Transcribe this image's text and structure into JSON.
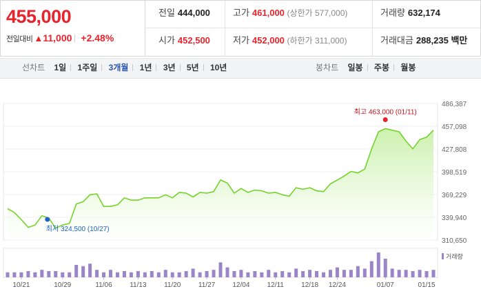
{
  "summary": {
    "current_price": "455,000",
    "change_label": "전일대비",
    "change_arrow": "▲",
    "change_amount": "11,000",
    "change_percent": "+2.48%",
    "stats": {
      "prev_close_label": "전일",
      "prev_close": "444,000",
      "high_label": "고가",
      "high": "461,000",
      "upper_limit": "(상한가 577,000)",
      "volume_label": "거래량",
      "volume": "632,174",
      "open_label": "시가",
      "open": "452,500",
      "low_label": "저가",
      "low": "452,000",
      "lower_limit": "(하한가 311,000)",
      "amount_label": "거래대금",
      "amount": "288,235",
      "amount_unit": "백만"
    }
  },
  "toolbar": {
    "line_chart_label": "선차트",
    "periods": [
      "1일",
      "1주일",
      "3개월",
      "1년",
      "3년",
      "5년",
      "10년"
    ],
    "active_period": "3개월",
    "candle_chart_label": "봉차트",
    "candle_periods": [
      "일봉",
      "주봉",
      "월봉"
    ]
  },
  "colors": {
    "up": "#e8232c",
    "active_tab": "#2c56b0",
    "line": "#74d32a",
    "area_top": "#c9f0a9",
    "volume": "#9b85c9"
  },
  "chart_data": {
    "type": "area",
    "y_ticks": [
      "486,387",
      "457,098",
      "427,808",
      "398,519",
      "369,229",
      "339,940",
      "310,650"
    ],
    "ylim": [
      310650,
      486387
    ],
    "x_ticks": [
      {
        "label": "10/21",
        "index": 2
      },
      {
        "label": "10/29",
        "index": 8
      },
      {
        "label": "11/06",
        "index": 14
      },
      {
        "label": "11/13",
        "index": 19
      },
      {
        "label": "11/20",
        "index": 24
      },
      {
        "label": "11/27",
        "index": 29
      },
      {
        "label": "12/04",
        "index": 34
      },
      {
        "label": "12/11",
        "index": 39
      },
      {
        "label": "12/18",
        "index": 44
      },
      {
        "label": "12/24",
        "index": 48
      },
      {
        "label": "01/07",
        "index": 55
      },
      {
        "label": "01/15",
        "index": 61
      }
    ],
    "values": [
      351000,
      346000,
      337000,
      327000,
      330000,
      342000,
      339000,
      326000,
      330000,
      332000,
      357000,
      360000,
      369000,
      370000,
      354000,
      354000,
      356000,
      365000,
      362000,
      362000,
      365000,
      365000,
      365000,
      369000,
      365000,
      372000,
      371000,
      366000,
      372000,
      371000,
      373000,
      388000,
      384000,
      371000,
      377000,
      372000,
      375000,
      374000,
      371000,
      372000,
      369000,
      367000,
      378000,
      376000,
      378000,
      374000,
      373000,
      383000,
      388000,
      393000,
      399000,
      397000,
      402000,
      428000,
      450000,
      454000,
      452000,
      450000,
      438000,
      428000,
      440000,
      443000,
      452000
    ],
    "volumes": [
      0.2,
      0.2,
      0.2,
      0.25,
      0.2,
      0.3,
      0.25,
      0.25,
      0.2,
      0.2,
      0.5,
      0.45,
      0.55,
      0.3,
      0.2,
      0.3,
      0.2,
      0.25,
      0.2,
      0.25,
      0.2,
      0.25,
      0.2,
      0.3,
      0.2,
      0.2,
      0.25,
      0.35,
      0.2,
      0.25,
      0.3,
      0.6,
      0.4,
      0.25,
      0.3,
      0.2,
      0.25,
      0.2,
      0.3,
      0.2,
      0.25,
      0.2,
      0.35,
      0.25,
      0.3,
      0.25,
      0.2,
      0.3,
      0.4,
      0.3,
      0.3,
      0.45,
      0.35,
      0.65,
      1.0,
      0.75,
      0.35,
      0.3,
      0.3,
      0.25,
      0.3,
      0.25,
      0.3
    ],
    "high_marker": {
      "label": "최고",
      "value_text": "463,000 (01/11)",
      "index": 55
    },
    "low_marker": {
      "label": "최저",
      "value_text": "324,500 (10/27)",
      "index": 6
    },
    "volume_legend": "거래량"
  }
}
